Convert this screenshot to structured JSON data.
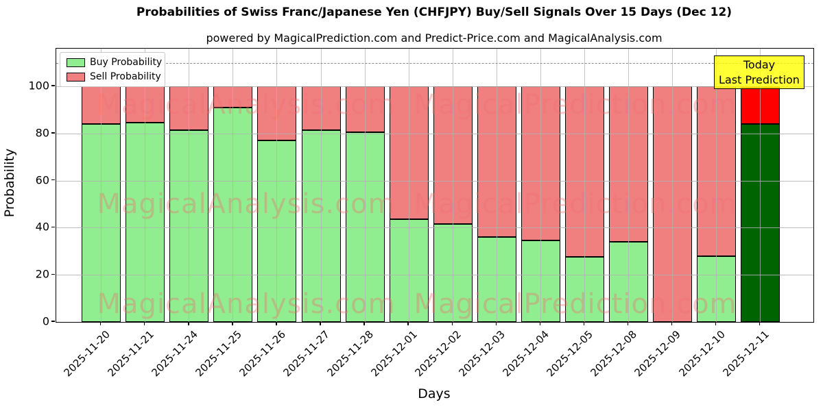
{
  "title": "Probabilities of Swiss Franc/Japanese Yen (CHFJPY) Buy/Sell Signals Over 15 Days (Dec 12)",
  "subtitle": "powered by MagicalPrediction.com and Predict-Price.com and MagicalAnalysis.com",
  "axes": {
    "xlabel": "Days",
    "ylabel": "Probability",
    "yticks": [
      0,
      20,
      40,
      60,
      80,
      100
    ],
    "ymax": 116,
    "dashed_line_y": 110,
    "grid": "both"
  },
  "legend": {
    "position": "upper left",
    "items": [
      {
        "label": "Buy Probability",
        "color": "#90ee90"
      },
      {
        "label": "Sell Probability",
        "color": "#f08080"
      }
    ]
  },
  "annotation_box": {
    "line1": "Today",
    "line2": "Last Prediction",
    "bg_color": "#ffff00"
  },
  "watermarks": {
    "left_text": "MagicalAnalysis.com",
    "right_text": "MagicalPrediction.com",
    "color": "#f08080"
  },
  "chart_data": {
    "type": "bar",
    "stacked": true,
    "title": "Probabilities of Swiss Franc/Japanese Yen (CHFJPY) Buy/Sell Signals Over 15 Days (Dec 12)",
    "xlabel": "Days",
    "ylabel": "Probability",
    "ylim": [
      0,
      116
    ],
    "grid": "both",
    "legend_position": "upper left",
    "categories": [
      "2025-11-20",
      "2025-11-21",
      "2025-11-24",
      "2025-11-25",
      "2025-11-26",
      "2025-11-27",
      "2025-11-28",
      "2025-12-01",
      "2025-12-02",
      "2025-12-03",
      "2025-12-04",
      "2025-12-05",
      "2025-12-08",
      "2025-12-09",
      "2025-12-10",
      "2025-12-11"
    ],
    "series": [
      {
        "name": "Buy Probability",
        "color": "#90ee90",
        "values": [
          84,
          84.5,
          81.5,
          91,
          77,
          81.5,
          80.5,
          43.5,
          41.5,
          36,
          34.5,
          27.5,
          34,
          0,
          28,
          84
        ]
      },
      {
        "name": "Sell Probability",
        "color": "#f08080",
        "values": [
          16,
          15.5,
          18.5,
          9,
          23,
          18.5,
          19.5,
          56.5,
          58.5,
          64,
          65.5,
          72.5,
          66,
          100,
          72,
          16
        ]
      }
    ],
    "last_bar_highlight": {
      "buy_color": "#006400",
      "sell_color": "#ff0000",
      "label": "Today Last Prediction"
    },
    "bar_total": 100
  }
}
